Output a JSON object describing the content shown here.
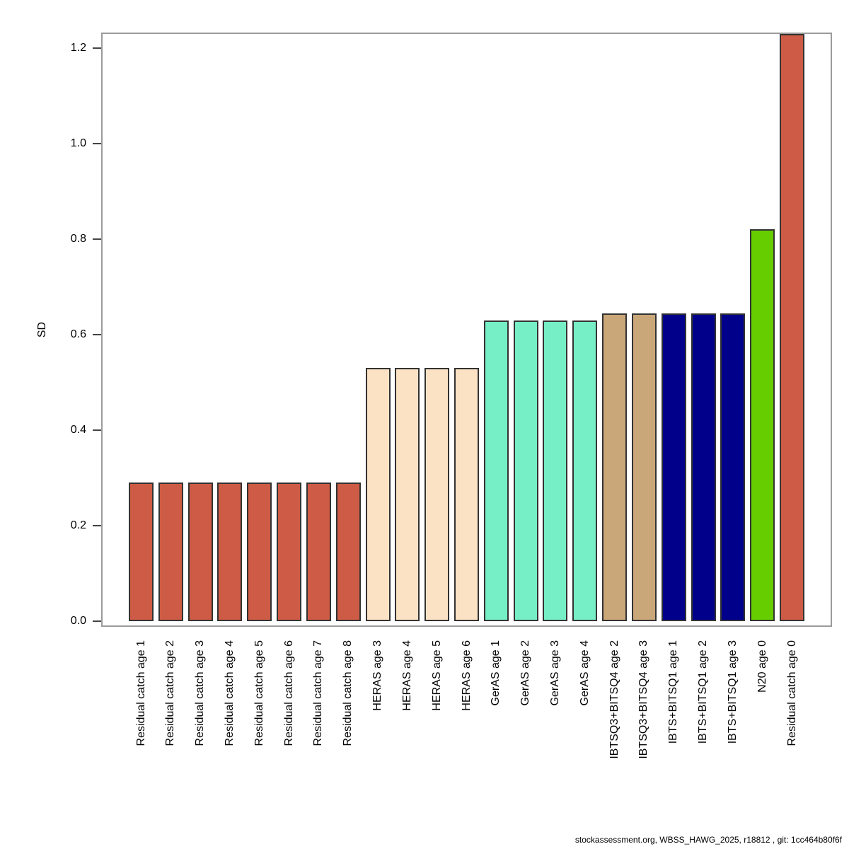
{
  "page": {
    "background": "#ffffff"
  },
  "footer": {
    "text": "stockassessment.org, WBSS_HAWG_2025, r18812 , git: 1cc464b80f6f"
  },
  "chart_data": {
    "type": "bar",
    "title": "",
    "xlabel": "",
    "ylabel": "SD",
    "ylim": [
      0,
      1.25
    ],
    "yticks": [
      0.0,
      0.2,
      0.4,
      0.6,
      0.8,
      1.0,
      1.2
    ],
    "grid": false,
    "legend_position": "none",
    "categories": [
      "Residual catch age 1",
      "Residual catch age 2",
      "Residual catch age 3",
      "Residual catch age 4",
      "Residual catch age 5",
      "Residual catch age 6",
      "Residual catch age 7",
      "Residual catch age 8",
      "HERAS age 3",
      "HERAS age 4",
      "HERAS age 5",
      "HERAS age 6",
      "GerAS age 1",
      "GerAS age 2",
      "GerAS age 3",
      "GerAS age 4",
      "IBTSQ3+BITSQ4 age 2",
      "IBTSQ3+BITSQ4 age 3",
      "IBTS+BITSQ1 age 1",
      "IBTS+BITSQ1 age 2",
      "IBTS+BITSQ1 age 3",
      "N20 age 0",
      "Residual catch age 0"
    ],
    "values": [
      0.29,
      0.29,
      0.29,
      0.29,
      0.29,
      0.29,
      0.29,
      0.29,
      0.53,
      0.53,
      0.53,
      0.53,
      0.63,
      0.63,
      0.63,
      0.63,
      0.645,
      0.645,
      0.645,
      0.645,
      0.645,
      0.82,
      1.23
    ],
    "bar_colors": [
      "#CD5B45",
      "#CD5B45",
      "#CD5B45",
      "#CD5B45",
      "#CD5B45",
      "#CD5B45",
      "#CD5B45",
      "#CD5B45",
      "#FCE2C4",
      "#FCE2C4",
      "#FCE2C4",
      "#FCE2C4",
      "#76EEC6",
      "#76EEC6",
      "#76EEC6",
      "#76EEC6",
      "#C9A779",
      "#C9A779",
      "#00008B",
      "#00008B",
      "#00008B",
      "#66CD00",
      "#CD5B45"
    ],
    "bar_border_color": "#333333",
    "axis_box_color": "#9b9b9b",
    "tick_color": "#444444"
  }
}
